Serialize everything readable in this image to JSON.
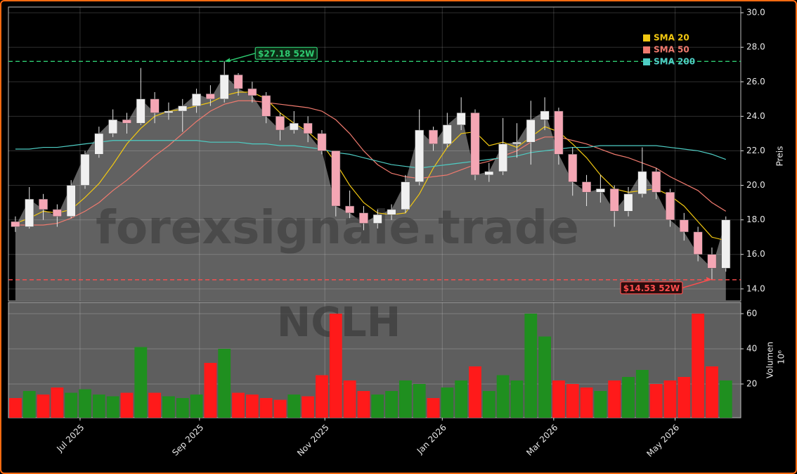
{
  "chart_data": {
    "type": "candlestick",
    "symbol": "NCLH",
    "watermark": "forexsignale.trade",
    "y_label": "Preis",
    "volume_label": "Volumen",
    "volume_unit": "10⁶",
    "xlim": [
      0,
      368
    ],
    "xticks": [
      {
        "value": 36,
        "label": "Jul 2025"
      },
      {
        "value": 96,
        "label": "Sep 2025"
      },
      {
        "value": 159,
        "label": "Nov 2025"
      },
      {
        "value": 218,
        "label": "Jan 2026"
      },
      {
        "value": 274,
        "label": "Mar 2026"
      },
      {
        "value": 335,
        "label": "May 2026"
      }
    ],
    "ylim": [
      13.3,
      30.33
    ],
    "yticks": [
      {
        "value": 14,
        "label": "14.0"
      },
      {
        "value": 16,
        "label": "16.0"
      },
      {
        "value": 18,
        "label": "18.0"
      },
      {
        "value": 20,
        "label": "20.0"
      },
      {
        "value": 22,
        "label": "22.0"
      },
      {
        "value": 24,
        "label": "24.0"
      },
      {
        "value": 26,
        "label": "26.0"
      },
      {
        "value": 28,
        "label": "28.0"
      },
      {
        "value": 30,
        "label": "30.0"
      }
    ],
    "volume_ylim": [
      0.8,
      66.4
    ],
    "volume_yticks": [
      20,
      40,
      60
    ],
    "grid": true,
    "legend": "upper-right",
    "colors": {
      "up": "#f0f0f0",
      "down": "#f4a6b4",
      "volume_up": "#1f8f1f",
      "volume_down": "#ff1a1a",
      "area": "#666666"
    },
    "x": [
      3.5,
      10.5,
      17.5,
      24.5,
      31.5,
      38.5,
      45.5,
      52.5,
      59.5,
      66.5,
      73.5,
      80.5,
      87.5,
      94.5,
      101.5,
      108.5,
      115.5,
      122.5,
      129.5,
      136.5,
      143.5,
      150.5,
      157.5,
      164.5,
      171.5,
      178.5,
      185.5,
      192.5,
      199.5,
      206.5,
      213.5,
      220.5,
      227.5,
      234.5,
      241.5,
      248.5,
      255.5,
      262.5,
      269.5,
      276.5,
      283.5,
      290.5,
      297.5,
      304.5,
      311.5,
      318.5,
      325.5,
      332.5,
      339.5,
      346.5,
      353.5,
      360.5
    ],
    "open": [
      17.9,
      17.6,
      19.2,
      18.6,
      18.2,
      20.0,
      21.8,
      23.0,
      23.8,
      23.6,
      25.0,
      24.2,
      24.3,
      24.6,
      25.3,
      25.0,
      26.4,
      25.6,
      25.2,
      24.0,
      23.2,
      23.6,
      23.0,
      22.0,
      18.8,
      18.4,
      17.8,
      18.3,
      18.6,
      20.2,
      23.2,
      22.4,
      23.5,
      24.2,
      20.6,
      20.8,
      22.4,
      22.5,
      23.8,
      24.3,
      21.8,
      20.2,
      19.6,
      19.8,
      18.5,
      19.5,
      20.8,
      19.6,
      18.0,
      17.3,
      16.0,
      15.2
    ],
    "high": [
      18.2,
      19.9,
      19.5,
      18.9,
      20.3,
      22.0,
      23.4,
      24.4,
      24.2,
      26.8,
      25.4,
      24.8,
      25.0,
      25.6,
      25.8,
      27.18,
      26.5,
      26.0,
      25.4,
      24.2,
      24.3,
      24.0,
      23.2,
      22.0,
      19.7,
      18.8,
      18.6,
      18.9,
      20.6,
      24.4,
      23.4,
      24.2,
      25.1,
      24.4,
      21.3,
      23.9,
      23.6,
      24.9,
      25.1,
      24.5,
      22.2,
      20.6,
      20.6,
      20.0,
      19.9,
      22.2,
      21.0,
      19.8,
      18.4,
      17.6,
      16.4,
      18.2
    ],
    "low": [
      17.3,
      17.5,
      18.0,
      17.6,
      18.1,
      19.8,
      21.6,
      22.8,
      23.0,
      23.5,
      23.6,
      23.8,
      23.1,
      24.2,
      24.6,
      24.8,
      25.2,
      24.8,
      23.6,
      22.6,
      23.0,
      22.5,
      21.8,
      18.2,
      18.1,
      17.4,
      17.5,
      18.0,
      18.4,
      20.0,
      22.0,
      22.2,
      23.2,
      20.3,
      20.2,
      20.6,
      21.6,
      21.2,
      23.2,
      21.2,
      19.4,
      18.8,
      19.0,
      17.6,
      18.2,
      19.3,
      19.2,
      17.6,
      16.8,
      15.6,
      14.53,
      15.0
    ],
    "close": [
      17.6,
      19.2,
      18.6,
      18.2,
      20.0,
      21.8,
      23.0,
      23.8,
      23.6,
      25.0,
      24.2,
      24.3,
      24.6,
      25.3,
      25.0,
      26.4,
      25.6,
      25.2,
      24.0,
      23.2,
      23.6,
      23.0,
      22.0,
      18.8,
      18.4,
      17.8,
      18.3,
      18.6,
      20.2,
      23.2,
      22.4,
      23.5,
      24.2,
      20.6,
      20.8,
      22.4,
      22.5,
      23.8,
      24.3,
      21.8,
      20.2,
      19.6,
      19.8,
      18.5,
      19.5,
      20.8,
      19.6,
      18.0,
      17.3,
      16.0,
      15.2,
      18.0
    ],
    "volume": [
      12,
      16,
      14,
      18,
      15,
      17,
      14,
      13,
      15,
      41,
      15,
      13,
      12,
      14,
      32,
      40,
      15,
      14,
      12,
      11,
      14,
      13,
      25,
      60,
      22,
      16,
      14,
      16,
      22,
      20,
      12,
      18,
      22,
      30,
      16,
      25,
      22,
      60,
      47,
      22,
      20,
      18,
      16,
      22,
      24,
      28,
      20,
      22,
      24,
      60,
      30,
      22
    ],
    "series": [
      {
        "name": "SMA 20",
        "color": "#f2c811",
        "values": [
          17.8,
          18.1,
          18.5,
          18.4,
          18.6,
          19.3,
          20.1,
          21.2,
          22.4,
          23.3,
          24.0,
          24.3,
          24.4,
          24.6,
          24.8,
          25.2,
          25.4,
          25.4,
          25.0,
          24.2,
          23.6,
          23.1,
          22.4,
          21.3,
          20.0,
          19.0,
          18.4,
          18.3,
          18.4,
          19.5,
          21.0,
          22.2,
          23.0,
          23.1,
          22.3,
          22.5,
          22.2,
          22.8,
          23.4,
          23.1,
          22.4,
          21.6,
          20.6,
          19.8,
          19.6,
          19.7,
          19.8,
          19.4,
          18.8,
          17.9,
          17.0,
          16.8
        ]
      },
      {
        "name": "SMA 50",
        "color": "#f07a6e",
        "values": [
          17.7,
          17.7,
          17.7,
          17.8,
          18.1,
          18.5,
          19.0,
          19.7,
          20.3,
          21.0,
          21.7,
          22.3,
          23.0,
          23.7,
          24.3,
          24.7,
          24.9,
          24.9,
          24.8,
          24.7,
          24.6,
          24.5,
          24.3,
          23.8,
          23.0,
          22.0,
          21.2,
          20.7,
          20.5,
          20.4,
          20.5,
          20.6,
          20.9,
          21.2,
          21.4,
          21.7,
          22.0,
          22.5,
          22.8,
          22.8,
          22.6,
          22.4,
          22.1,
          21.8,
          21.6,
          21.3,
          21.0,
          20.5,
          20.1,
          19.7,
          19.0,
          18.5
        ]
      },
      {
        "name": "SMA 200",
        "color": "#4ecdc4",
        "values": [
          22.1,
          22.1,
          22.2,
          22.2,
          22.3,
          22.4,
          22.5,
          22.6,
          22.6,
          22.6,
          22.6,
          22.6,
          22.6,
          22.6,
          22.5,
          22.5,
          22.5,
          22.4,
          22.4,
          22.3,
          22.3,
          22.2,
          22.1,
          21.9,
          21.8,
          21.6,
          21.4,
          21.2,
          21.1,
          21.0,
          21.1,
          21.2,
          21.3,
          21.4,
          21.5,
          21.6,
          21.7,
          21.9,
          22.0,
          22.1,
          22.2,
          22.2,
          22.3,
          22.3,
          22.3,
          22.3,
          22.3,
          22.2,
          22.1,
          22.0,
          21.8,
          21.5
        ]
      }
    ],
    "high_mark": {
      "value": 27.18,
      "label": "$27.18 52W",
      "color": "#2ecc71",
      "index": 15
    },
    "low_mark": {
      "value": 14.53,
      "label": "$14.53 52W",
      "color": "#ff4d4d",
      "index": 50
    }
  }
}
